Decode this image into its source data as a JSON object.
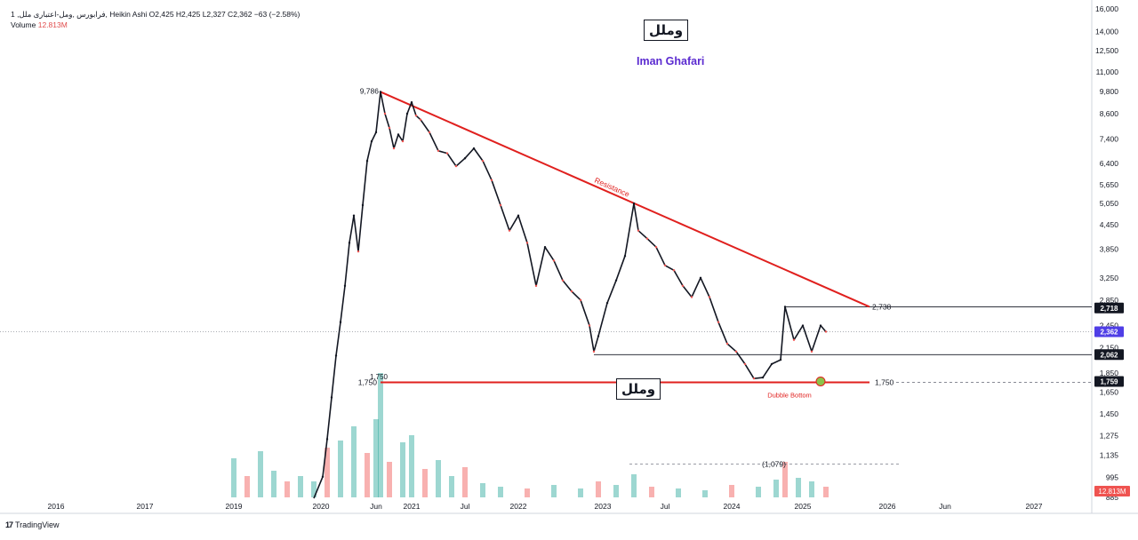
{
  "header": {
    "symbol_line": "1 ,فرابورس ,ومل-اعتباری ملل",
    "ohlc_line": "Heikin Ashi  O2,425  H2,425  L2,327  C2,362  −63 (−2.58%)",
    "volume_label": "Volume",
    "volume_value": "12.813M"
  },
  "brand_top": "وملل",
  "brand_bottom": "وملل",
  "author": "Iman Ghafari",
  "footer_logo": "TradingView",
  "colors": {
    "up": "#26a69a",
    "down": "#ef5350",
    "annotation_red": "#e0201e",
    "author_purple": "#5b2bd0",
    "badge_dark": "#131722",
    "badge_price": "#4f3ee6",
    "badge_volume": "#ef5350"
  },
  "chart_data": {
    "type": "line",
    "title": "",
    "scale": "log",
    "ylim": [
      885,
      16000
    ],
    "y_ticks": [
      885,
      995,
      1135,
      1275,
      1450,
      1650,
      1850,
      2150,
      2450,
      2850,
      3250,
      3850,
      4450,
      5050,
      5650,
      6400,
      7400,
      8600,
      9800,
      11000,
      12500,
      14000,
      16000
    ],
    "x_ticks": [
      {
        "t": 2016.0,
        "label": "2016"
      },
      {
        "t": 2017.0,
        "label": "2017"
      },
      {
        "t": 2018.0,
        "label": "2019"
      },
      {
        "t": 2018.98,
        "label": "2020"
      },
      {
        "t": 2019.6,
        "label": "Jun"
      },
      {
        "t": 2020.0,
        "label": "2021"
      },
      {
        "t": 2020.6,
        "label": "Jul"
      },
      {
        "t": 2021.2,
        "label": "2022"
      },
      {
        "t": 2022.15,
        "label": "2023"
      },
      {
        "t": 2022.85,
        "label": "Jul"
      },
      {
        "t": 2023.6,
        "label": "2024"
      },
      {
        "t": 2024.4,
        "label": "2025"
      },
      {
        "t": 2025.35,
        "label": "2026"
      },
      {
        "t": 2026.0,
        "label": "Jun"
      },
      {
        "t": 2027.0,
        "label": "2027"
      }
    ],
    "price_series": [
      {
        "t": 2018.9,
        "v": 880
      },
      {
        "t": 2019.0,
        "v": 1000
      },
      {
        "t": 2019.05,
        "v": 1250
      },
      {
        "t": 2019.1,
        "v": 1600
      },
      {
        "t": 2019.15,
        "v": 2050
      },
      {
        "t": 2019.2,
        "v": 2500
      },
      {
        "t": 2019.25,
        "v": 3100
      },
      {
        "t": 2019.3,
        "v": 4000
      },
      {
        "t": 2019.35,
        "v": 4700
      },
      {
        "t": 2019.4,
        "v": 3800
      },
      {
        "t": 2019.45,
        "v": 5000
      },
      {
        "t": 2019.5,
        "v": 6500
      },
      {
        "t": 2019.55,
        "v": 7300
      },
      {
        "t": 2019.6,
        "v": 7700
      },
      {
        "t": 2019.65,
        "v": 9786
      },
      {
        "t": 2019.7,
        "v": 8600
      },
      {
        "t": 2019.75,
        "v": 7900
      },
      {
        "t": 2019.8,
        "v": 7000
      },
      {
        "t": 2019.85,
        "v": 7600
      },
      {
        "t": 2019.9,
        "v": 7300
      },
      {
        "t": 2019.95,
        "v": 8600
      },
      {
        "t": 2020.0,
        "v": 9200
      },
      {
        "t": 2020.05,
        "v": 8500
      },
      {
        "t": 2020.1,
        "v": 8300
      },
      {
        "t": 2020.2,
        "v": 7700
      },
      {
        "t": 2020.3,
        "v": 6900
      },
      {
        "t": 2020.4,
        "v": 6800
      },
      {
        "t": 2020.5,
        "v": 6300
      },
      {
        "t": 2020.6,
        "v": 6600
      },
      {
        "t": 2020.7,
        "v": 7000
      },
      {
        "t": 2020.8,
        "v": 6500
      },
      {
        "t": 2020.9,
        "v": 5800
      },
      {
        "t": 2021.0,
        "v": 5000
      },
      {
        "t": 2021.1,
        "v": 4300
      },
      {
        "t": 2021.2,
        "v": 4700
      },
      {
        "t": 2021.3,
        "v": 4000
      },
      {
        "t": 2021.4,
        "v": 3100
      },
      {
        "t": 2021.5,
        "v": 3900
      },
      {
        "t": 2021.6,
        "v": 3600
      },
      {
        "t": 2021.7,
        "v": 3200
      },
      {
        "t": 2021.8,
        "v": 3000
      },
      {
        "t": 2021.9,
        "v": 2850
      },
      {
        "t": 2022.0,
        "v": 2450
      },
      {
        "t": 2022.05,
        "v": 2100
      },
      {
        "t": 2022.1,
        "v": 2300
      },
      {
        "t": 2022.2,
        "v": 2800
      },
      {
        "t": 2022.3,
        "v": 3200
      },
      {
        "t": 2022.4,
        "v": 3700
      },
      {
        "t": 2022.5,
        "v": 5050
      },
      {
        "t": 2022.55,
        "v": 4300
      },
      {
        "t": 2022.65,
        "v": 4100
      },
      {
        "t": 2022.75,
        "v": 3900
      },
      {
        "t": 2022.85,
        "v": 3500
      },
      {
        "t": 2022.95,
        "v": 3400
      },
      {
        "t": 2023.05,
        "v": 3100
      },
      {
        "t": 2023.15,
        "v": 2900
      },
      {
        "t": 2023.25,
        "v": 3250
      },
      {
        "t": 2023.35,
        "v": 2900
      },
      {
        "t": 2023.45,
        "v": 2500
      },
      {
        "t": 2023.55,
        "v": 2200
      },
      {
        "t": 2023.65,
        "v": 2100
      },
      {
        "t": 2023.75,
        "v": 1950
      },
      {
        "t": 2023.85,
        "v": 1790
      },
      {
        "t": 2023.95,
        "v": 1800
      },
      {
        "t": 2024.05,
        "v": 1950
      },
      {
        "t": 2024.15,
        "v": 2000
      },
      {
        "t": 2024.2,
        "v": 2738
      },
      {
        "t": 2024.3,
        "v": 2250
      },
      {
        "t": 2024.4,
        "v": 2450
      },
      {
        "t": 2024.5,
        "v": 2100
      },
      {
        "t": 2024.6,
        "v": 2450
      },
      {
        "t": 2024.66,
        "v": 2362
      }
    ],
    "volume_series": [
      {
        "t": 2018.0,
        "v": 2.2
      },
      {
        "t": 2018.15,
        "v": 1.2
      },
      {
        "t": 2018.3,
        "v": 2.6
      },
      {
        "t": 2018.45,
        "v": 1.5
      },
      {
        "t": 2018.6,
        "v": 0.9
      },
      {
        "t": 2018.75,
        "v": 1.2
      },
      {
        "t": 2018.9,
        "v": 0.9
      },
      {
        "t": 2019.05,
        "v": 2.8
      },
      {
        "t": 2019.2,
        "v": 3.2
      },
      {
        "t": 2019.35,
        "v": 4.0
      },
      {
        "t": 2019.5,
        "v": 2.5
      },
      {
        "t": 2019.6,
        "v": 4.4
      },
      {
        "t": 2019.65,
        "v": 7.0
      },
      {
        "t": 2019.75,
        "v": 2.0
      },
      {
        "t": 2019.9,
        "v": 3.1
      },
      {
        "t": 2020.0,
        "v": 3.5
      },
      {
        "t": 2020.15,
        "v": 1.6
      },
      {
        "t": 2020.3,
        "v": 2.1
      },
      {
        "t": 2020.45,
        "v": 1.2
      },
      {
        "t": 2020.6,
        "v": 1.7
      },
      {
        "t": 2020.8,
        "v": 0.8
      },
      {
        "t": 2021.0,
        "v": 0.6
      },
      {
        "t": 2021.3,
        "v": 0.5
      },
      {
        "t": 2021.6,
        "v": 0.7
      },
      {
        "t": 2021.9,
        "v": 0.5
      },
      {
        "t": 2022.1,
        "v": 0.9
      },
      {
        "t": 2022.3,
        "v": 0.7
      },
      {
        "t": 2022.5,
        "v": 1.3
      },
      {
        "t": 2022.7,
        "v": 0.6
      },
      {
        "t": 2023.0,
        "v": 0.5
      },
      {
        "t": 2023.3,
        "v": 0.4
      },
      {
        "t": 2023.6,
        "v": 0.7
      },
      {
        "t": 2023.9,
        "v": 0.6
      },
      {
        "t": 2024.1,
        "v": 1.0
      },
      {
        "t": 2024.2,
        "v": 2.0
      },
      {
        "t": 2024.35,
        "v": 1.1
      },
      {
        "t": 2024.5,
        "v": 0.9
      },
      {
        "t": 2024.66,
        "v": 0.6
      }
    ],
    "annotations": {
      "resistance": {
        "label": "Resistance",
        "from": {
          "t": 2019.65,
          "v": 9786
        },
        "to": {
          "t": 2025.15,
          "v": 2738
        }
      },
      "support": {
        "label": "Dubble Bottom",
        "price": 1750,
        "from_t": 2019.65,
        "to_t": 2025.15
      },
      "support_ext_label": "1,750",
      "high_label": "9,786",
      "support_label": "1,750",
      "top_level": {
        "price": 2738,
        "label": "2,738",
        "from_t": 2024.2,
        "to_t": 2027.5
      },
      "bottom_level": {
        "price": 2062,
        "from_t": 2022.05,
        "to_t": 2027.5
      },
      "projection": {
        "price": 1079,
        "label": "(1,079)",
        "from_t": 2022.45,
        "to_t": 2025.5
      },
      "last_price_dotted": 2362
    },
    "price_badges": [
      {
        "price": 2718,
        "label": "2,718",
        "kind": "dark"
      },
      {
        "price": 2362,
        "label": "2,362",
        "kind": "price"
      },
      {
        "price": 2062,
        "label": "2,062",
        "kind": "dark"
      },
      {
        "price": 1759,
        "label": "1,759",
        "kind": "dark"
      }
    ],
    "volume_badge": "12.813M",
    "volume_1750_label": "1,750"
  }
}
